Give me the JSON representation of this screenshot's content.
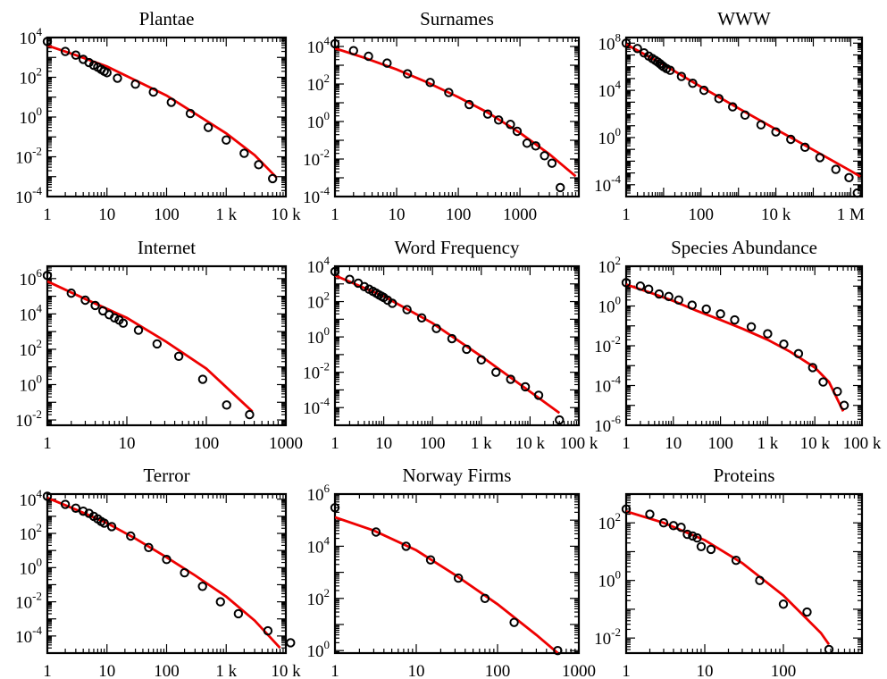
{
  "colors": {
    "fit_line": "#ee0000",
    "markers": "#000000",
    "axes": "#000000",
    "background": "#ffffff"
  },
  "chart_data": [
    {
      "type": "scatter",
      "title": "Plantae",
      "xscale": "log",
      "yscale": "log",
      "xlim": [
        1,
        10000
      ],
      "ylim": [
        0.0001,
        10000
      ],
      "xticks": [
        {
          "v": 1,
          "label": "1"
        },
        {
          "v": 10,
          "label": "10"
        },
        {
          "v": 100,
          "label": "100"
        },
        {
          "v": 1000,
          "label": "1 k"
        },
        {
          "v": 10000,
          "label": "10 k"
        }
      ],
      "yticks": [
        {
          "v": 0.0001,
          "base": "10",
          "exp": "-4"
        },
        {
          "v": 0.01,
          "base": "10",
          "exp": "-2"
        },
        {
          "v": 1,
          "base": "10",
          "exp": "0"
        },
        {
          "v": 100,
          "base": "10",
          "exp": "2"
        },
        {
          "v": 10000,
          "base": "10",
          "exp": "4"
        }
      ],
      "points": {
        "x": [
          1,
          2,
          3,
          4,
          5,
          6,
          7,
          8,
          9,
          10,
          15,
          30,
          60,
          120,
          250,
          500,
          1000,
          2000,
          3500,
          6000
        ],
        "y": [
          6300,
          2000,
          1300,
          800,
          550,
          400,
          320,
          250,
          200,
          170,
          90,
          45,
          18,
          5.5,
          1.5,
          0.3,
          0.07,
          0.015,
          0.004,
          0.0008
        ]
      },
      "fit": {
        "x": [
          1,
          3,
          10,
          30,
          100,
          300,
          1000,
          3000,
          7000
        ],
        "y": [
          4000,
          1300,
          350,
          70,
          12,
          1.5,
          0.15,
          0.012,
          0.0009
        ]
      }
    },
    {
      "type": "scatter",
      "title": "Surnames",
      "xscale": "log",
      "yscale": "log",
      "xlim": [
        1,
        9000
      ],
      "ylim": [
        0.0001,
        30000
      ],
      "xticks": [
        {
          "v": 1,
          "label": "1"
        },
        {
          "v": 10,
          "label": "10"
        },
        {
          "v": 100,
          "label": "100"
        },
        {
          "v": 1000,
          "label": "1000"
        }
      ],
      "yticks": [
        {
          "v": 0.0001,
          "base": "10",
          "exp": "-4"
        },
        {
          "v": 0.01,
          "base": "10",
          "exp": "-2"
        },
        {
          "v": 1,
          "base": "10",
          "exp": "0"
        },
        {
          "v": 100,
          "base": "10",
          "exp": "2"
        },
        {
          "v": 10000,
          "base": "10",
          "exp": "4"
        }
      ],
      "points": {
        "x": [
          1,
          2,
          3.5,
          7,
          15,
          35,
          70,
          150,
          300,
          450,
          700,
          900,
          1300,
          1800,
          2500,
          3300,
          4500
        ],
        "y": [
          14000,
          6000,
          3000,
          1300,
          350,
          120,
          35,
          8,
          2.5,
          1.2,
          0.7,
          0.3,
          0.07,
          0.05,
          0.015,
          0.006,
          0.0003
        ]
      },
      "fit": {
        "x": [
          1,
          3,
          10,
          30,
          100,
          300,
          1000,
          3000,
          8000
        ],
        "y": [
          8000,
          2500,
          600,
          130,
          20,
          3,
          0.25,
          0.018,
          0.0012
        ]
      }
    },
    {
      "type": "scatter",
      "title": "WWW",
      "xscale": "log",
      "yscale": "log",
      "xlim": [
        1,
        2000000
      ],
      "ylim": [
        1e-05,
        300000000
      ],
      "xticks": [
        {
          "v": 1,
          "label": "1"
        },
        {
          "v": 100,
          "label": "100"
        },
        {
          "v": 10000,
          "label": "10 k"
        },
        {
          "v": 1000000,
          "label": "1 M"
        }
      ],
      "yticks": [
        {
          "v": 0.0001,
          "base": "10",
          "exp": "-4"
        },
        {
          "v": 1,
          "base": "10",
          "exp": "0"
        },
        {
          "v": 10000,
          "base": "10",
          "exp": "4"
        },
        {
          "v": 100000000,
          "base": "10",
          "exp": "8"
        }
      ],
      "points": {
        "x": [
          1,
          2,
          3,
          4,
          5,
          6,
          7,
          8,
          9,
          10,
          12,
          15,
          30,
          60,
          120,
          300,
          700,
          1500,
          4000,
          10000,
          25000,
          60000,
          150000,
          400000,
          900000,
          1500000
        ],
        "y": [
          100000000,
          35000000,
          15000000,
          8000000,
          5000000,
          3500000,
          2500000,
          1800000,
          1300000,
          1000000,
          700000,
          500000,
          150000,
          40000,
          10000,
          2000,
          400,
          80,
          12,
          3,
          0.7,
          0.15,
          0.02,
          0.002,
          0.0004,
          2e-05
        ]
      },
      "fit": {
        "x": [
          1,
          10,
          100,
          1000,
          10000,
          100000,
          1000000,
          1800000
        ],
        "y": [
          80000000,
          1500000,
          20000,
          300,
          5,
          0.09,
          0.0015,
          0.0005
        ]
      }
    },
    {
      "type": "scatter",
      "title": "Internet",
      "xscale": "log",
      "yscale": "log",
      "xlim": [
        1,
        1000
      ],
      "ylim": [
        0.005,
        5000000
      ],
      "xticks": [
        {
          "v": 1,
          "label": "1"
        },
        {
          "v": 10,
          "label": "10"
        },
        {
          "v": 100,
          "label": "100"
        },
        {
          "v": 1000,
          "label": "1000"
        }
      ],
      "yticks": [
        {
          "v": 0.01,
          "base": "10",
          "exp": "-2"
        },
        {
          "v": 1,
          "base": "10",
          "exp": "0"
        },
        {
          "v": 100,
          "base": "10",
          "exp": "2"
        },
        {
          "v": 10000,
          "base": "10",
          "exp": "4"
        },
        {
          "v": 1000000,
          "base": "10",
          "exp": "6"
        }
      ],
      "points": {
        "x": [
          1,
          2,
          3,
          4,
          5,
          6,
          7,
          8,
          9,
          14,
          24,
          45,
          90,
          180,
          350
        ],
        "y": [
          1500000,
          150000,
          60000,
          30000,
          15000,
          9000,
          6000,
          4500,
          3000,
          1200,
          200,
          40,
          2,
          0.07,
          0.02
        ]
      },
      "fit": {
        "x": [
          1,
          3,
          10,
          30,
          100,
          300,
          380
        ],
        "y": [
          700000,
          70000,
          6000,
          300,
          8,
          0.08,
          0.03
        ]
      }
    },
    {
      "type": "scatter",
      "title": "Word Frequency",
      "xscale": "log",
      "yscale": "log",
      "xlim": [
        1,
        100000
      ],
      "ylim": [
        1e-05,
        10000
      ],
      "xticks": [
        {
          "v": 1,
          "label": "1"
        },
        {
          "v": 10,
          "label": "10"
        },
        {
          "v": 100,
          "label": "100"
        },
        {
          "v": 1000,
          "label": "1 k"
        },
        {
          "v": 10000,
          "label": "10 k"
        },
        {
          "v": 100000,
          "label": "100 k"
        }
      ],
      "yticks": [
        {
          "v": 0.0001,
          "base": "10",
          "exp": "-4"
        },
        {
          "v": 0.01,
          "base": "10",
          "exp": "-2"
        },
        {
          "v": 1,
          "base": "10",
          "exp": "0"
        },
        {
          "v": 100,
          "base": "10",
          "exp": "2"
        },
        {
          "v": 10000,
          "base": "10",
          "exp": "4"
        }
      ],
      "points": {
        "x": [
          1,
          2,
          3,
          4,
          5,
          6,
          7,
          8,
          9,
          10,
          12,
          15,
          30,
          60,
          120,
          250,
          500,
          1000,
          2000,
          4000,
          8000,
          15000,
          40000
        ],
        "y": [
          5000,
          1800,
          1100,
          700,
          500,
          380,
          300,
          240,
          200,
          170,
          120,
          80,
          35,
          12,
          3,
          0.8,
          0.2,
          0.05,
          0.01,
          0.004,
          0.0015,
          0.0005,
          2e-05
        ]
      },
      "fit": {
        "x": [
          1,
          10,
          100,
          1000,
          10000,
          40000
        ],
        "y": [
          3000,
          200,
          6,
          0.08,
          0.0008,
          5e-05
        ]
      }
    },
    {
      "type": "scatter",
      "title": "Species Abundance",
      "xscale": "log",
      "yscale": "log",
      "xlim": [
        1,
        100000
      ],
      "ylim": [
        1e-06,
        100
      ],
      "xticks": [
        {
          "v": 1,
          "label": "1"
        },
        {
          "v": 10,
          "label": "10"
        },
        {
          "v": 100,
          "label": "100"
        },
        {
          "v": 1000,
          "label": "1 k"
        },
        {
          "v": 10000,
          "label": "10 k"
        },
        {
          "v": 100000,
          "label": "100 k"
        }
      ],
      "yticks": [
        {
          "v": 1e-06,
          "base": "10",
          "exp": "-6"
        },
        {
          "v": 0.0001,
          "base": "10",
          "exp": "-4"
        },
        {
          "v": 0.01,
          "base": "10",
          "exp": "-2"
        },
        {
          "v": 1,
          "base": "10",
          "exp": "0"
        },
        {
          "v": 100,
          "base": "10",
          "exp": "2"
        }
      ],
      "points": {
        "x": [
          1,
          2,
          3,
          5,
          8,
          13,
          25,
          50,
          100,
          200,
          450,
          1000,
          2200,
          4500,
          9000,
          15000,
          30000,
          42000
        ],
        "y": [
          15,
          10,
          7,
          4,
          3,
          2,
          1.1,
          0.7,
          0.4,
          0.2,
          0.09,
          0.04,
          0.012,
          0.004,
          0.0008,
          0.00015,
          5e-05,
          1e-05
        ]
      },
      "fit": {
        "x": [
          1,
          3,
          10,
          30,
          100,
          300,
          1000,
          3000,
          10000,
          20000,
          40000
        ],
        "y": [
          12,
          5,
          1.8,
          0.6,
          0.2,
          0.07,
          0.02,
          0.005,
          0.0008,
          0.00015,
          5e-06
        ]
      }
    },
    {
      "type": "scatter",
      "title": "Terror",
      "xscale": "log",
      "yscale": "log",
      "xlim": [
        1,
        10000
      ],
      "ylim": [
        1e-05,
        20000
      ],
      "xticks": [
        {
          "v": 1,
          "label": "1"
        },
        {
          "v": 10,
          "label": "10"
        },
        {
          "v": 100,
          "label": "100"
        },
        {
          "v": 1000,
          "label": "1 k"
        },
        {
          "v": 10000,
          "label": "10 k"
        }
      ],
      "yticks": [
        {
          "v": 0.0001,
          "base": "10",
          "exp": "-4"
        },
        {
          "v": 0.01,
          "base": "10",
          "exp": "-2"
        },
        {
          "v": 1,
          "base": "10",
          "exp": "0"
        },
        {
          "v": 100,
          "base": "10",
          "exp": "2"
        },
        {
          "v": 10000,
          "base": "10",
          "exp": "4"
        }
      ],
      "points": {
        "x": [
          1,
          2,
          3,
          4,
          5,
          6,
          7,
          8,
          9,
          12,
          25,
          50,
          100,
          200,
          400,
          800,
          1600,
          5000,
          12000
        ],
        "y": [
          15000,
          5000,
          3000,
          2000,
          1500,
          1000,
          700,
          500,
          400,
          250,
          70,
          15,
          3,
          0.5,
          0.08,
          0.01,
          0.002,
          0.0002,
          4e-05
        ]
      },
      "fit": {
        "x": [
          1,
          3,
          10,
          30,
          100,
          300,
          1000,
          3000,
          8000
        ],
        "y": [
          12000,
          2500,
          400,
          50,
          4,
          0.35,
          0.02,
          0.0008,
          2e-05
        ]
      }
    },
    {
      "type": "scatter",
      "title": "Norway Firms",
      "xscale": "log",
      "yscale": "log",
      "xlim": [
        1,
        1000
      ],
      "ylim": [
        0.8,
        1000000
      ],
      "xticks": [
        {
          "v": 1,
          "label": "1"
        },
        {
          "v": 10,
          "label": "10"
        },
        {
          "v": 100,
          "label": "100"
        },
        {
          "v": 1000,
          "label": "1000"
        }
      ],
      "yticks": [
        {
          "v": 1,
          "base": "10",
          "exp": "0"
        },
        {
          "v": 100,
          "base": "10",
          "exp": "2"
        },
        {
          "v": 10000,
          "base": "10",
          "exp": "4"
        },
        {
          "v": 1000000,
          "base": "10",
          "exp": "6"
        }
      ],
      "points": {
        "x": [
          1,
          3.2,
          7.5,
          15,
          33,
          70,
          160,
          550
        ],
        "y": [
          300000,
          35000,
          10000,
          3000,
          600,
          100,
          12,
          1
        ]
      },
      "fit": {
        "x": [
          1,
          3,
          10,
          30,
          100,
          300,
          550
        ],
        "y": [
          130000,
          40000,
          7000,
          800,
          60,
          4,
          0.8
        ]
      }
    },
    {
      "type": "scatter",
      "title": "Proteins",
      "xscale": "log",
      "yscale": "log",
      "xlim": [
        1,
        1000
      ],
      "ylim": [
        0.003,
        1000
      ],
      "xticks": [
        {
          "v": 1,
          "label": "1"
        },
        {
          "v": 10,
          "label": "10"
        },
        {
          "v": 100,
          "label": "100"
        }
      ],
      "yticks": [
        {
          "v": 0.01,
          "base": "10",
          "exp": "-2"
        },
        {
          "v": 1,
          "base": "10",
          "exp": "0"
        },
        {
          "v": 100,
          "base": "10",
          "exp": "2"
        }
      ],
      "points": {
        "x": [
          1,
          2,
          3,
          4,
          5,
          6,
          7,
          8,
          9,
          12,
          25,
          50,
          100,
          200,
          380
        ],
        "y": [
          300,
          200,
          100,
          80,
          70,
          40,
          35,
          30,
          15,
          12,
          5,
          1,
          0.15,
          0.08,
          0.004
        ]
      },
      "fit": {
        "x": [
          1,
          3,
          10,
          30,
          100,
          300,
          380
        ],
        "y": [
          250,
          100,
          25,
          4,
          0.3,
          0.015,
          0.006
        ]
      }
    }
  ]
}
